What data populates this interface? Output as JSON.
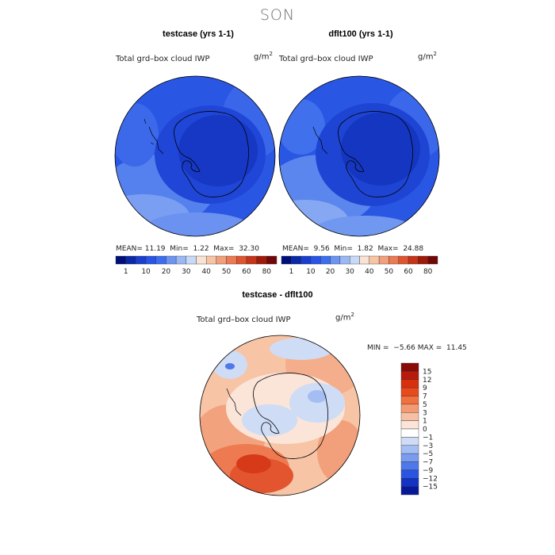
{
  "season": "SON",
  "panels": [
    {
      "title": "testcase (yrs 1-1)",
      "field": "Total grd–box cloud IWP",
      "units_base": "g/m",
      "units_exp": "2",
      "stats": {
        "mean_label": "MEAN=",
        "mean": "11.19",
        "min_label": "Min=",
        "min": "1.22",
        "max_label": "Max=",
        "max": "32.30"
      }
    },
    {
      "title": "dflt100 (yrs 1-1)",
      "field": "Total grd–box cloud IWP",
      "units_base": "g/m",
      "units_exp": "2",
      "stats": {
        "mean_label": "MEAN=",
        "mean": "9.56",
        "min_label": "Min=",
        "min": "1.82",
        "max_label": "Max=",
        "max": "24.88"
      }
    }
  ],
  "colorbar_top": {
    "labels": [
      "1",
      "10",
      "20",
      "30",
      "40",
      "50",
      "60",
      "80"
    ],
    "colors": [
      "#000e7a",
      "#0a28a8",
      "#1a3fd0",
      "#2855e6",
      "#3d6ef0",
      "#6c95f2",
      "#9bb8f5",
      "#c8d9f8",
      "#f9e3d4",
      "#f7c5a6",
      "#f2a07c",
      "#ec7a55",
      "#e05530",
      "#c8341a",
      "#a01a0a",
      "#700808"
    ]
  },
  "diff": {
    "title": "testcase - dflt100",
    "field": "Total grd–box cloud IWP",
    "units_base": "g/m",
    "units_exp": "2",
    "min_label": "MIN =",
    "min": "−5.66",
    "max_label": "MAX =",
    "max": "11.45",
    "colorbar": {
      "labels": [
        "15",
        "12",
        "9",
        "7",
        "5",
        "3",
        "1",
        "0",
        "−1",
        "−3",
        "−5",
        "−7",
        "−9",
        "−12",
        "−15"
      ],
      "colors": [
        "#8a0a05",
        "#b81a0c",
        "#d8300f",
        "#ea4a1a",
        "#f2703e",
        "#f49a72",
        "#f7c0a4",
        "#fbe4d8",
        "#ffffff",
        "#cfdcf6",
        "#a4bdf3",
        "#7a9cf0",
        "#4f78ea",
        "#2a55e0",
        "#1432c4",
        "#08189a"
      ]
    }
  },
  "map_colors": {
    "deep": "#1436c8",
    "mid": "#2852e2",
    "light": "#4a76ee",
    "pale": "#86a8f2",
    "coast": "#000000"
  }
}
